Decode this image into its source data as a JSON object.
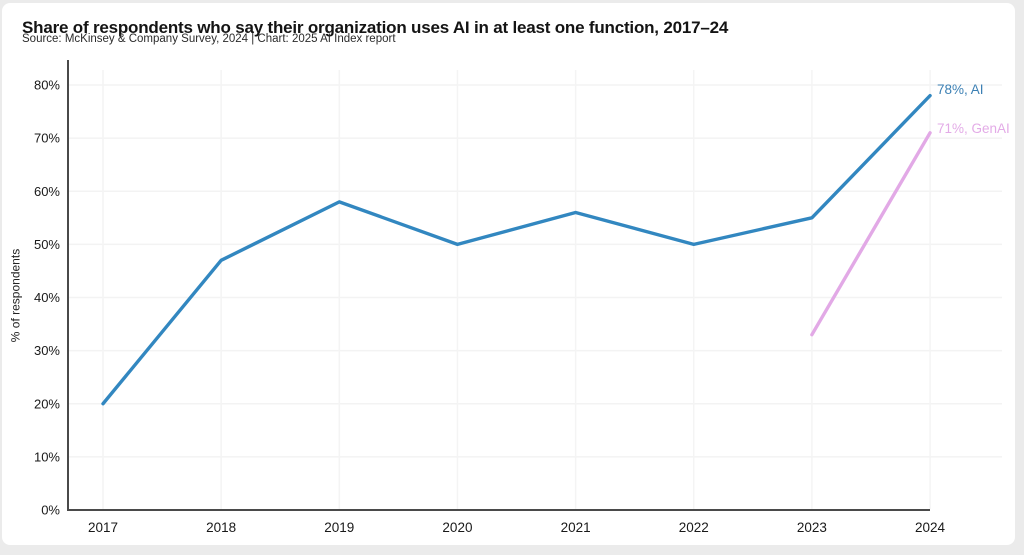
{
  "page": {
    "background_color": "#ebebeb",
    "card_color": "#ffffff"
  },
  "chart_data": {
    "type": "line",
    "title": "Share of respondents who say their organization uses AI in at least one function, 2017–24",
    "source": "Source: McKinsey & Company Survey, 2024 | Chart: 2025 AI Index report",
    "ylabel": "% of respondents",
    "xlabel": "",
    "categories": [
      "2017",
      "2018",
      "2019",
      "2020",
      "2021",
      "2022",
      "2023",
      "2024"
    ],
    "series": [
      {
        "name": "AI",
        "color": "#3287c0",
        "label_color": "#3c80b4",
        "end_label": "78%, AI",
        "values": [
          20,
          47,
          58,
          50,
          56,
          50,
          55,
          78
        ]
      },
      {
        "name": "GenAI",
        "color": "#e2a9e6",
        "label_color": "#e3abe7",
        "end_label": "71%, GenAI",
        "values": [
          null,
          null,
          null,
          null,
          null,
          null,
          33,
          71
        ]
      }
    ],
    "ylim": [
      0,
      80
    ],
    "ytick_step": 10,
    "ytick_labels": [
      "0%",
      "10%",
      "20%",
      "30%",
      "40%",
      "50%",
      "60%",
      "70%",
      "80%"
    ],
    "grid": "faint horizontal and vertical gridlines",
    "axis_color": "#4a4a4a",
    "tick_label_color": "#191919",
    "legend_position": "line-end labels, right side"
  }
}
